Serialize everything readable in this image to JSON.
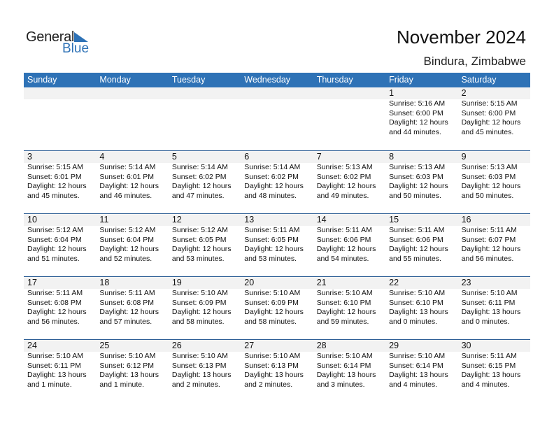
{
  "logo": {
    "line1": "General",
    "line2": "Blue"
  },
  "title": "November 2024",
  "location": "Bindura, Zimbabwe",
  "colors": {
    "header": "#2e72b6",
    "strip": "#f2f2f2"
  },
  "weekdays": [
    "Sunday",
    "Monday",
    "Tuesday",
    "Wednesday",
    "Thursday",
    "Friday",
    "Saturday"
  ],
  "weeks": [
    [
      null,
      null,
      null,
      null,
      null,
      {
        "day": "1",
        "sunrise": "Sunrise: 5:16 AM",
        "sunset": "Sunset: 6:00 PM",
        "daylight1": "Daylight: 12 hours",
        "daylight2": "and 44 minutes."
      },
      {
        "day": "2",
        "sunrise": "Sunrise: 5:15 AM",
        "sunset": "Sunset: 6:00 PM",
        "daylight1": "Daylight: 12 hours",
        "daylight2": "and 45 minutes."
      }
    ],
    [
      {
        "day": "3",
        "sunrise": "Sunrise: 5:15 AM",
        "sunset": "Sunset: 6:01 PM",
        "daylight1": "Daylight: 12 hours",
        "daylight2": "and 45 minutes."
      },
      {
        "day": "4",
        "sunrise": "Sunrise: 5:14 AM",
        "sunset": "Sunset: 6:01 PM",
        "daylight1": "Daylight: 12 hours",
        "daylight2": "and 46 minutes."
      },
      {
        "day": "5",
        "sunrise": "Sunrise: 5:14 AM",
        "sunset": "Sunset: 6:02 PM",
        "daylight1": "Daylight: 12 hours",
        "daylight2": "and 47 minutes."
      },
      {
        "day": "6",
        "sunrise": "Sunrise: 5:14 AM",
        "sunset": "Sunset: 6:02 PM",
        "daylight1": "Daylight: 12 hours",
        "daylight2": "and 48 minutes."
      },
      {
        "day": "7",
        "sunrise": "Sunrise: 5:13 AM",
        "sunset": "Sunset: 6:02 PM",
        "daylight1": "Daylight: 12 hours",
        "daylight2": "and 49 minutes."
      },
      {
        "day": "8",
        "sunrise": "Sunrise: 5:13 AM",
        "sunset": "Sunset: 6:03 PM",
        "daylight1": "Daylight: 12 hours",
        "daylight2": "and 50 minutes."
      },
      {
        "day": "9",
        "sunrise": "Sunrise: 5:13 AM",
        "sunset": "Sunset: 6:03 PM",
        "daylight1": "Daylight: 12 hours",
        "daylight2": "and 50 minutes."
      }
    ],
    [
      {
        "day": "10",
        "sunrise": "Sunrise: 5:12 AM",
        "sunset": "Sunset: 6:04 PM",
        "daylight1": "Daylight: 12 hours",
        "daylight2": "and 51 minutes."
      },
      {
        "day": "11",
        "sunrise": "Sunrise: 5:12 AM",
        "sunset": "Sunset: 6:04 PM",
        "daylight1": "Daylight: 12 hours",
        "daylight2": "and 52 minutes."
      },
      {
        "day": "12",
        "sunrise": "Sunrise: 5:12 AM",
        "sunset": "Sunset: 6:05 PM",
        "daylight1": "Daylight: 12 hours",
        "daylight2": "and 53 minutes."
      },
      {
        "day": "13",
        "sunrise": "Sunrise: 5:11 AM",
        "sunset": "Sunset: 6:05 PM",
        "daylight1": "Daylight: 12 hours",
        "daylight2": "and 53 minutes."
      },
      {
        "day": "14",
        "sunrise": "Sunrise: 5:11 AM",
        "sunset": "Sunset: 6:06 PM",
        "daylight1": "Daylight: 12 hours",
        "daylight2": "and 54 minutes."
      },
      {
        "day": "15",
        "sunrise": "Sunrise: 5:11 AM",
        "sunset": "Sunset: 6:06 PM",
        "daylight1": "Daylight: 12 hours",
        "daylight2": "and 55 minutes."
      },
      {
        "day": "16",
        "sunrise": "Sunrise: 5:11 AM",
        "sunset": "Sunset: 6:07 PM",
        "daylight1": "Daylight: 12 hours",
        "daylight2": "and 56 minutes."
      }
    ],
    [
      {
        "day": "17",
        "sunrise": "Sunrise: 5:11 AM",
        "sunset": "Sunset: 6:08 PM",
        "daylight1": "Daylight: 12 hours",
        "daylight2": "and 56 minutes."
      },
      {
        "day": "18",
        "sunrise": "Sunrise: 5:11 AM",
        "sunset": "Sunset: 6:08 PM",
        "daylight1": "Daylight: 12 hours",
        "daylight2": "and 57 minutes."
      },
      {
        "day": "19",
        "sunrise": "Sunrise: 5:10 AM",
        "sunset": "Sunset: 6:09 PM",
        "daylight1": "Daylight: 12 hours",
        "daylight2": "and 58 minutes."
      },
      {
        "day": "20",
        "sunrise": "Sunrise: 5:10 AM",
        "sunset": "Sunset: 6:09 PM",
        "daylight1": "Daylight: 12 hours",
        "daylight2": "and 58 minutes."
      },
      {
        "day": "21",
        "sunrise": "Sunrise: 5:10 AM",
        "sunset": "Sunset: 6:10 PM",
        "daylight1": "Daylight: 12 hours",
        "daylight2": "and 59 minutes."
      },
      {
        "day": "22",
        "sunrise": "Sunrise: 5:10 AM",
        "sunset": "Sunset: 6:10 PM",
        "daylight1": "Daylight: 13 hours",
        "daylight2": "and 0 minutes."
      },
      {
        "day": "23",
        "sunrise": "Sunrise: 5:10 AM",
        "sunset": "Sunset: 6:11 PM",
        "daylight1": "Daylight: 13 hours",
        "daylight2": "and 0 minutes."
      }
    ],
    [
      {
        "day": "24",
        "sunrise": "Sunrise: 5:10 AM",
        "sunset": "Sunset: 6:11 PM",
        "daylight1": "Daylight: 13 hours",
        "daylight2": "and 1 minute."
      },
      {
        "day": "25",
        "sunrise": "Sunrise: 5:10 AM",
        "sunset": "Sunset: 6:12 PM",
        "daylight1": "Daylight: 13 hours",
        "daylight2": "and 1 minute."
      },
      {
        "day": "26",
        "sunrise": "Sunrise: 5:10 AM",
        "sunset": "Sunset: 6:13 PM",
        "daylight1": "Daylight: 13 hours",
        "daylight2": "and 2 minutes."
      },
      {
        "day": "27",
        "sunrise": "Sunrise: 5:10 AM",
        "sunset": "Sunset: 6:13 PM",
        "daylight1": "Daylight: 13 hours",
        "daylight2": "and 2 minutes."
      },
      {
        "day": "28",
        "sunrise": "Sunrise: 5:10 AM",
        "sunset": "Sunset: 6:14 PM",
        "daylight1": "Daylight: 13 hours",
        "daylight2": "and 3 minutes."
      },
      {
        "day": "29",
        "sunrise": "Sunrise: 5:10 AM",
        "sunset": "Sunset: 6:14 PM",
        "daylight1": "Daylight: 13 hours",
        "daylight2": "and 4 minutes."
      },
      {
        "day": "30",
        "sunrise": "Sunrise: 5:11 AM",
        "sunset": "Sunset: 6:15 PM",
        "daylight1": "Daylight: 13 hours",
        "daylight2": "and 4 minutes."
      }
    ]
  ]
}
